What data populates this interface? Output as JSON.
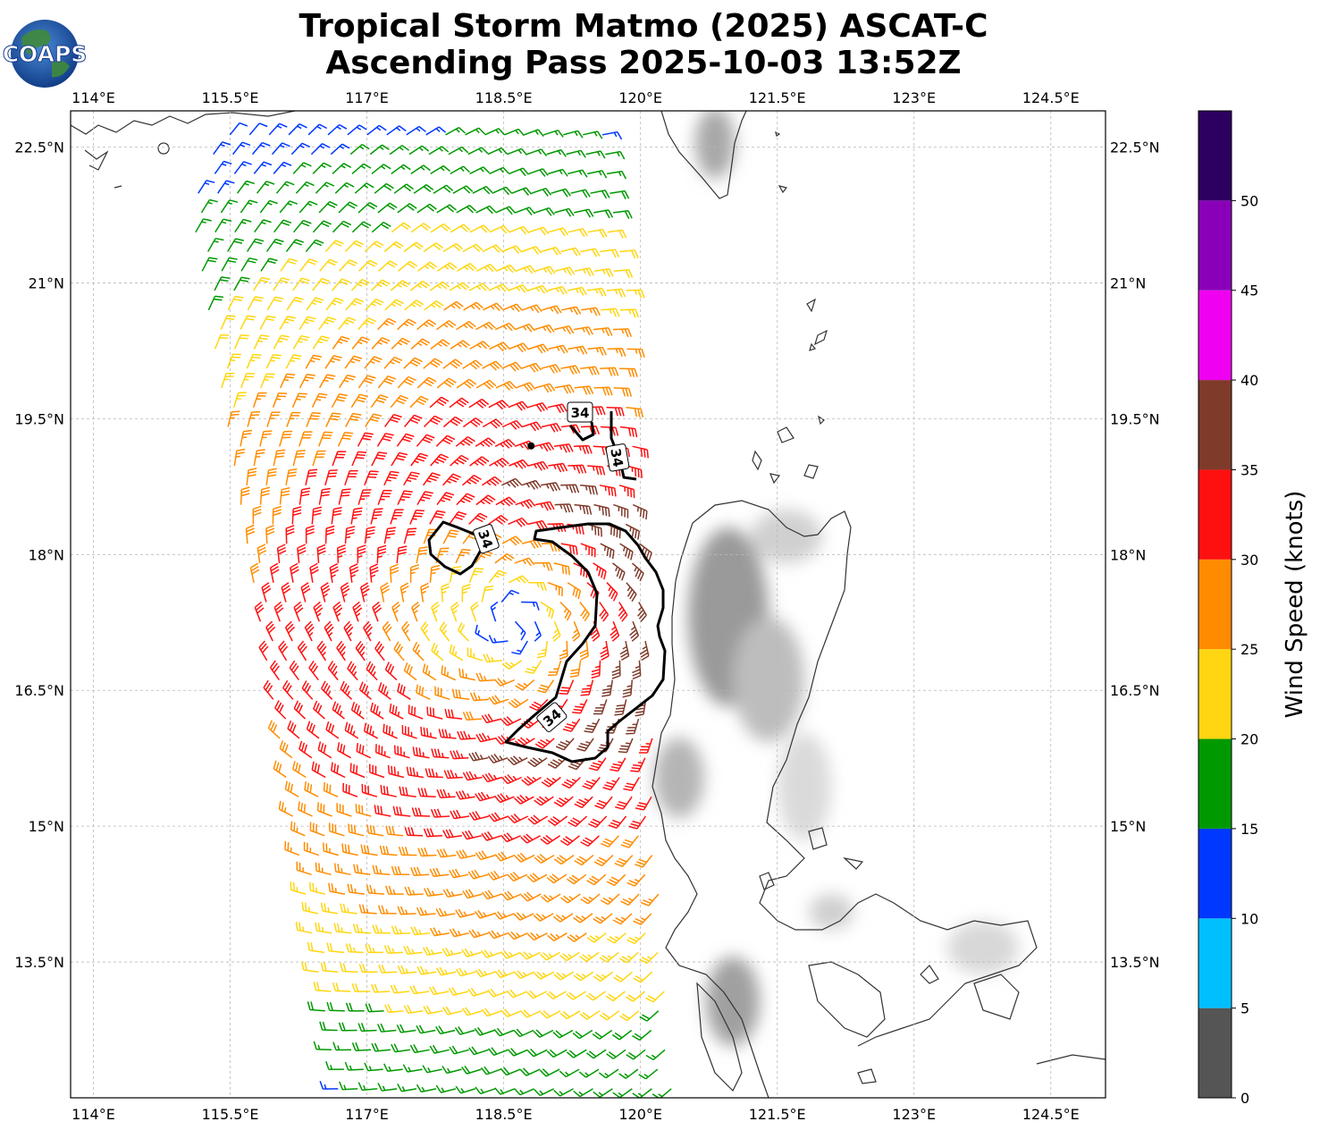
{
  "title": {
    "line1": "Tropical Storm Matmo (2025) ASCAT-C",
    "line2": "Ascending Pass 2025-10-03 13:52Z"
  },
  "logo": {
    "text": "COAPS"
  },
  "map": {
    "lon_range": [
      113.75,
      125.1
    ],
    "lat_range": [
      12.0,
      22.9
    ],
    "lon_ticks": [
      "114°E",
      "115.5°E",
      "117°E",
      "118.5°E",
      "120°E",
      "121.5°E",
      "123°E",
      "124.5°E"
    ],
    "lat_ticks": [
      "22.5°N",
      "21°N",
      "19.5°N",
      "18°N",
      "16.5°N",
      "15°N",
      "13.5°N"
    ],
    "storm_center": {
      "lon": 118.8,
      "lat": 19.2
    },
    "contour_value_label": "34"
  },
  "colorbar": {
    "label": "Wind Speed (knots)",
    "ticks": [
      "0",
      "5",
      "10",
      "15",
      "20",
      "25",
      "30",
      "35",
      "40",
      "45",
      "50"
    ],
    "bins": [
      {
        "range": [
          0,
          5
        ],
        "color": "#555555"
      },
      {
        "range": [
          5,
          10
        ],
        "color": "#00bfff"
      },
      {
        "range": [
          10,
          15
        ],
        "color": "#0038ff"
      },
      {
        "range": [
          15,
          20
        ],
        "color": "#009900"
      },
      {
        "range": [
          20,
          25
        ],
        "color": "#ffd611"
      },
      {
        "range": [
          25,
          30
        ],
        "color": "#ff8c00"
      },
      {
        "range": [
          30,
          35
        ],
        "color": "#ff1010"
      },
      {
        "range": [
          35,
          40
        ],
        "color": "#7f3a2a"
      },
      {
        "range": [
          40,
          45
        ],
        "color": "#f000f0"
      },
      {
        "range": [
          45,
          50
        ],
        "color": "#8a00b8"
      },
      {
        "range": [
          50,
          55
        ],
        "color": "#2d0060"
      }
    ]
  },
  "colors": {
    "coast": "#333333",
    "grid": "#b8b8b8",
    "contour": "#000000"
  }
}
